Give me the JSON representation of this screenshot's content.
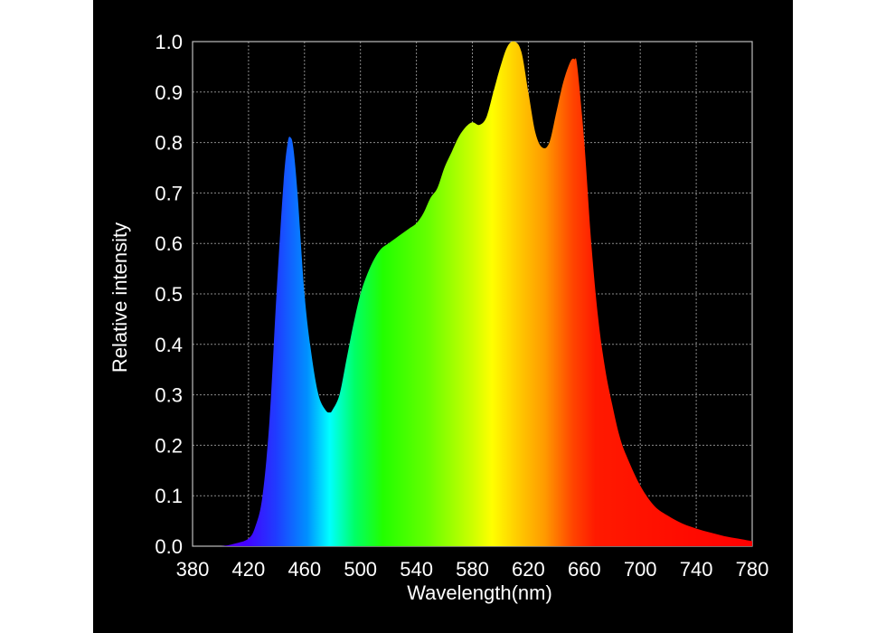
{
  "chart_data": {
    "type": "area",
    "title": "",
    "xlabel": "Wavelength(nm)",
    "ylabel": "Relative intensity",
    "xlim": [
      380,
      780
    ],
    "ylim": [
      0,
      1.0
    ],
    "x_ticks": [
      "380",
      "420",
      "460",
      "500",
      "540",
      "580",
      "620",
      "660",
      "700",
      "740",
      "780"
    ],
    "y_ticks": [
      "0.0",
      "0.1",
      "0.2",
      "0.3",
      "0.4",
      "0.5",
      "0.6",
      "0.7",
      "0.8",
      "0.9",
      "1.0"
    ],
    "grid": true,
    "legend": "none",
    "series": [
      {
        "x": [
          380,
          400,
          410,
          420,
          425,
          430,
          435,
          440,
          445,
          448,
          450,
          452,
          455,
          460,
          465,
          470,
          475,
          478,
          480,
          485,
          490,
          495,
          500,
          505,
          510,
          515,
          520,
          525,
          530,
          535,
          540,
          545,
          550,
          555,
          560,
          565,
          570,
          575,
          580,
          585,
          590,
          595,
          600,
          605,
          610,
          615,
          620,
          625,
          630,
          635,
          640,
          645,
          650,
          653,
          655,
          660,
          665,
          670,
          675,
          680,
          685,
          690,
          700,
          710,
          720,
          730,
          740,
          750,
          760,
          770,
          780
        ],
        "y": [
          0.0,
          0.0,
          0.005,
          0.015,
          0.04,
          0.1,
          0.25,
          0.5,
          0.72,
          0.8,
          0.81,
          0.79,
          0.7,
          0.5,
          0.38,
          0.3,
          0.27,
          0.265,
          0.27,
          0.3,
          0.37,
          0.44,
          0.5,
          0.54,
          0.57,
          0.59,
          0.6,
          0.61,
          0.62,
          0.63,
          0.64,
          0.66,
          0.69,
          0.71,
          0.75,
          0.78,
          0.81,
          0.83,
          0.84,
          0.835,
          0.85,
          0.9,
          0.95,
          0.99,
          1.0,
          0.98,
          0.9,
          0.82,
          0.79,
          0.8,
          0.86,
          0.92,
          0.96,
          0.965,
          0.95,
          0.8,
          0.6,
          0.45,
          0.35,
          0.28,
          0.22,
          0.18,
          0.12,
          0.08,
          0.06,
          0.045,
          0.035,
          0.027,
          0.02,
          0.015,
          0.01
        ],
        "fill": "spectral-gradient"
      }
    ]
  }
}
